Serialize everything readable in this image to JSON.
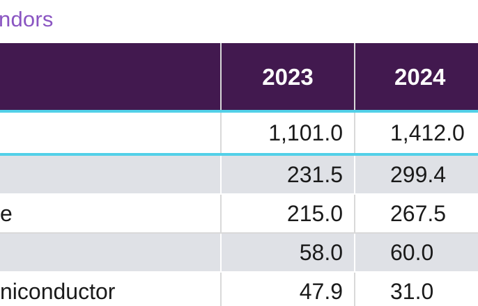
{
  "caption": "ndors",
  "table": {
    "headers": [
      "",
      "2023",
      "2024"
    ],
    "rows": [
      {
        "name": "",
        "v2023": "1,101.0",
        "v2024": "1,412.0"
      },
      {
        "name": "",
        "v2023": "231.5",
        "v2024": "299.4"
      },
      {
        "name": "e",
        "v2023": "215.0",
        "v2024": "267.5"
      },
      {
        "name": "",
        "v2023": "58.0",
        "v2024": "60.0"
      },
      {
        "name": "niconductor",
        "v2023": "47.9",
        "v2024": "31.0"
      }
    ]
  },
  "colors": {
    "header_bg": "#42194f",
    "caption": "#8a55c2",
    "highlight": "#52d0e8",
    "row_shade": "#dfe1e6"
  }
}
